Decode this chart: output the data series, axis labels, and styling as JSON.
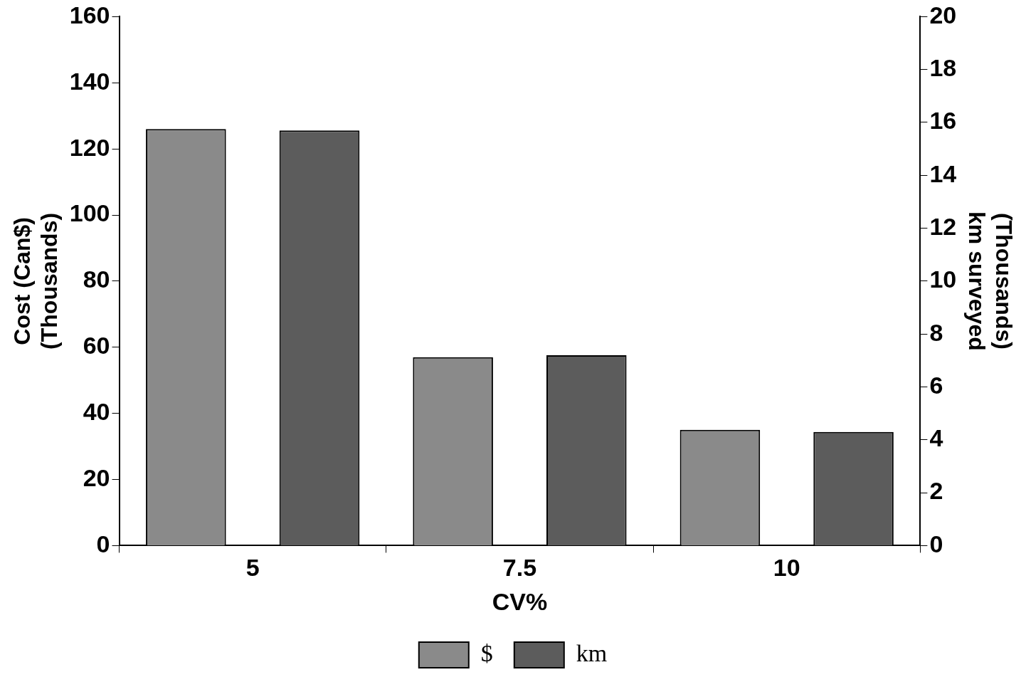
{
  "chart_data": {
    "type": "bar",
    "xlabel": "CV%",
    "ylabel": [
      "Cost (Can$)",
      "(Thousands)"
    ],
    "y2label": [
      "(Thousands)",
      "km surveyed"
    ],
    "categories": [
      "5",
      "7.5",
      "10"
    ],
    "series": [
      {
        "name": "$",
        "color": "#8a8a8a",
        "values": [
          126,
          57,
          35
        ]
      },
      {
        "name": "km",
        "color": "#5c5c5c",
        "values": [
          15.7,
          7.2,
          4.3
        ],
        "axis": "y2"
      }
    ],
    "ylim": [
      0,
      160
    ],
    "yticks": [
      0,
      20,
      40,
      60,
      80,
      100,
      120,
      140,
      160
    ],
    "y2lim": [
      0,
      20
    ],
    "y2ticks": [
      0,
      2,
      4,
      6,
      8,
      10,
      12,
      14,
      16,
      18,
      20
    ],
    "grid": false,
    "legend": "bottom"
  }
}
